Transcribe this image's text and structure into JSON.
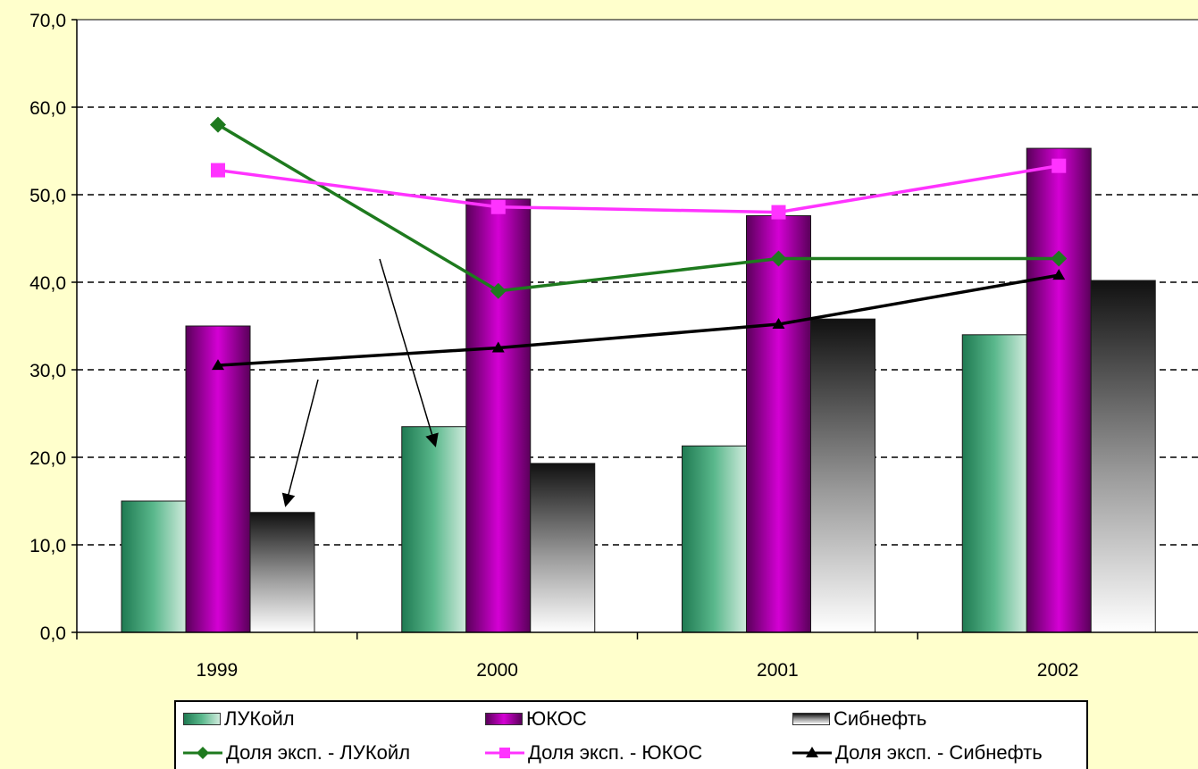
{
  "chart_data": {
    "type": "bar",
    "categories": [
      "1999",
      "2000",
      "2001",
      "2002"
    ],
    "ylim": [
      0,
      70
    ],
    "y_ticks": [
      "0,0",
      "10,0",
      "20,0",
      "30,0",
      "40,0",
      "50,0",
      "60,0",
      "70,0"
    ],
    "grid": "horizontal dashed",
    "legend_position": "bottom",
    "bar_series": [
      {
        "name": "ЛУКойл",
        "values": [
          15.0,
          23.5,
          21.3,
          34.0
        ],
        "color": "#3a9a6e"
      },
      {
        "name": "ЮКОС",
        "values": [
          35.0,
          49.5,
          47.6,
          55.3
        ],
        "color": "#a000a0"
      },
      {
        "name": "Сибнефть",
        "values": [
          13.7,
          19.3,
          35.8,
          40.2
        ],
        "color": "#222222"
      }
    ],
    "line_series": [
      {
        "name": "Доля эксп. - ЛУКойл",
        "values": [
          58.0,
          39.0,
          42.7,
          42.7
        ],
        "color": "#1e7a1e",
        "marker": "diamond"
      },
      {
        "name": "Доля эксп. - ЮКОС",
        "values": [
          52.8,
          48.6,
          48.0,
          53.3
        ],
        "color": "#ff33ff",
        "marker": "square"
      },
      {
        "name": "Доля эксп. - Сибнефть",
        "values": [
          30.5,
          32.5,
          35.2,
          40.8
        ],
        "color": "#000000",
        "marker": "triangle"
      }
    ]
  }
}
